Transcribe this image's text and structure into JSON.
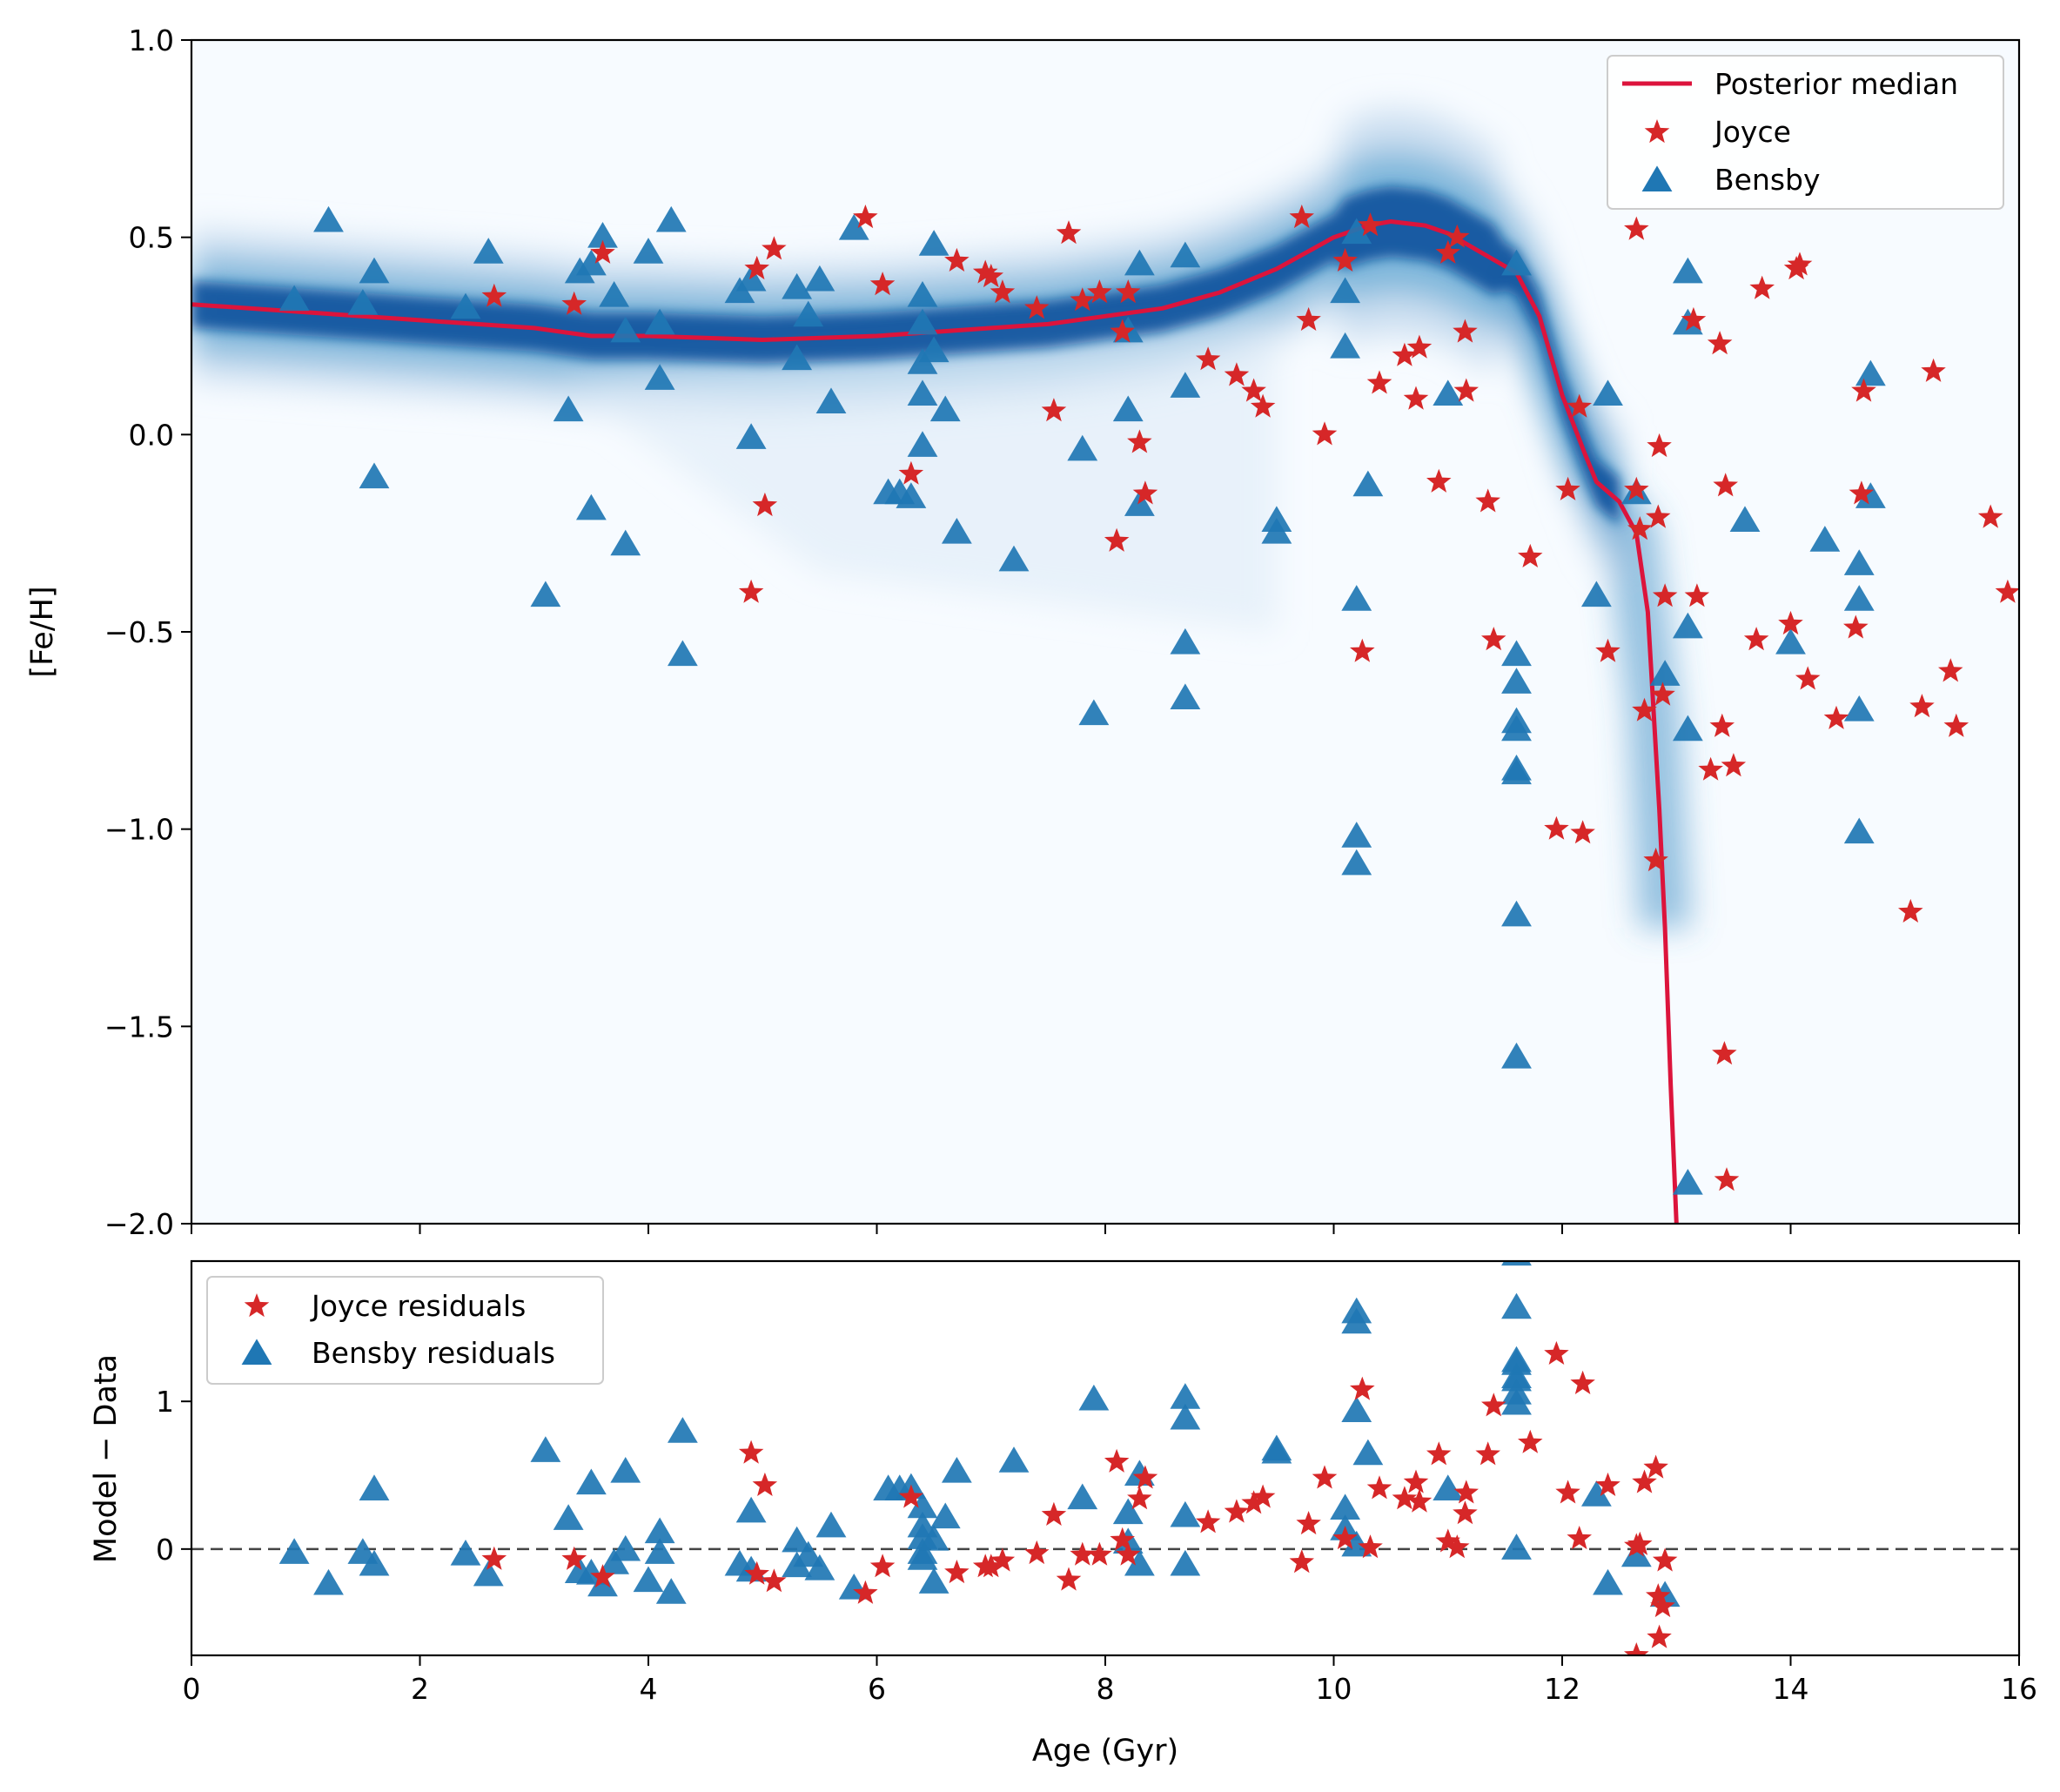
{
  "chart_data": [
    {
      "type": "scatter",
      "panel": "top",
      "xlabel": "Age (Gyr)",
      "ylabel": "[Fe/H]",
      "xlim": [
        0,
        16
      ],
      "ylim": [
        -2.0,
        1.0
      ],
      "xticks": [
        0,
        2,
        4,
        6,
        8,
        10,
        12,
        14,
        16
      ],
      "yticks": [
        1.0,
        0.5,
        0.0,
        -0.5,
        -1.0,
        -1.5,
        -2.0
      ],
      "ytick_labels": [
        "1.0",
        "0.5",
        "0.0",
        "−0.5",
        "−1.0",
        "−1.5",
        "−2.0"
      ],
      "xtick_labels_shown": false,
      "grid": false,
      "legend_position": "top-right",
      "legend": [
        "Posterior median",
        "Joyce",
        "Bensby"
      ],
      "background_density": "blue posterior density band",
      "posterior_median": {
        "name": "Posterior median",
        "color": "#dc143c",
        "x": [
          0,
          1,
          2,
          3,
          3.5,
          4,
          5,
          6,
          7,
          7.5,
          8,
          8.5,
          9,
          9.5,
          10,
          10.3,
          10.5,
          10.8,
          11,
          11.3,
          11.6,
          11.8,
          12.0,
          12.2,
          12.3,
          12.5,
          12.65,
          12.75,
          12.8,
          12.85,
          12.9,
          12.95,
          13.0
        ],
        "y": [
          0.33,
          0.31,
          0.29,
          0.27,
          0.25,
          0.25,
          0.24,
          0.25,
          0.27,
          0.28,
          0.3,
          0.32,
          0.36,
          0.42,
          0.5,
          0.53,
          0.54,
          0.53,
          0.51,
          0.46,
          0.41,
          0.3,
          0.1,
          -0.05,
          -0.12,
          -0.17,
          -0.25,
          -0.45,
          -0.7,
          -0.95,
          -1.25,
          -1.65,
          -2.0
        ]
      },
      "series": [
        {
          "name": "Joyce",
          "marker": "star",
          "color": "#d62728",
          "x": [
            2.65,
            3.35,
            3.6,
            4.9,
            4.95,
            5.02,
            5.1,
            5.9,
            6.05,
            6.3,
            6.7,
            6.95,
            7.0,
            7.1,
            7.4,
            7.55,
            7.68,
            7.8,
            7.95,
            8.1,
            8.15,
            8.2,
            8.3,
            8.35,
            8.9,
            9.15,
            9.3,
            9.38,
            9.72,
            9.78,
            9.92,
            10.1,
            10.25,
            10.32,
            10.4,
            10.62,
            10.72,
            10.75,
            10.92,
            11.0,
            11.08,
            11.15,
            11.16,
            11.35,
            11.4,
            11.72,
            11.95,
            12.05,
            12.15,
            12.18,
            12.4,
            12.65,
            12.65,
            12.68,
            12.72,
            12.82,
            12.84,
            12.85,
            12.88,
            12.9,
            13.15,
            13.18,
            13.3,
            13.38,
            13.4,
            13.42,
            13.43,
            13.44,
            13.5,
            13.7,
            13.75,
            14.0,
            14.05,
            14.08,
            14.15,
            14.4,
            14.57,
            14.62,
            14.64,
            15.05,
            15.15,
            15.25,
            15.4,
            15.45,
            15.75,
            15.9
          ],
          "y": [
            0.35,
            0.33,
            0.46,
            -0.4,
            0.42,
            -0.18,
            0.47,
            0.55,
            0.38,
            -0.1,
            0.44,
            0.41,
            0.4,
            0.36,
            0.32,
            0.06,
            0.51,
            0.34,
            0.36,
            -0.27,
            0.26,
            0.36,
            -0.02,
            -0.15,
            0.19,
            0.15,
            0.11,
            0.07,
            0.55,
            0.29,
            0.0,
            0.44,
            -0.55,
            0.53,
            0.13,
            0.2,
            0.09,
            0.22,
            -0.12,
            0.46,
            0.5,
            0.26,
            0.11,
            -0.17,
            -0.52,
            -0.31,
            -1.0,
            -0.14,
            0.07,
            -1.01,
            -0.55,
            0.52,
            -0.14,
            -0.24,
            -0.7,
            -1.08,
            -0.21,
            -0.03,
            -0.66,
            -0.41,
            0.29,
            -0.41,
            -0.85,
            0.23,
            -0.74,
            -1.57,
            -0.13,
            -1.89,
            -0.84,
            -0.52,
            0.37,
            -0.48,
            0.42,
            0.43,
            -0.62,
            -0.72,
            -0.49,
            -0.15,
            0.11,
            -1.21,
            -0.69,
            0.16,
            -0.6,
            -0.74,
            -0.21,
            -0.4
          ]
        },
        {
          "name": "Bensby",
          "marker": "triangle",
          "color": "#1f77b4",
          "x": [
            0.9,
            1.2,
            1.5,
            1.6,
            1.6,
            2.4,
            2.6,
            3.1,
            3.3,
            3.4,
            3.5,
            3.5,
            3.6,
            3.7,
            3.8,
            3.8,
            4.0,
            4.1,
            4.1,
            4.2,
            4.3,
            4.8,
            4.9,
            4.9,
            5.3,
            5.3,
            5.4,
            5.5,
            5.6,
            5.8,
            6.1,
            6.2,
            6.3,
            6.4,
            6.4,
            6.4,
            6.4,
            6.4,
            6.5,
            6.5,
            6.6,
            6.7,
            7.2,
            7.8,
            7.9,
            8.2,
            8.2,
            8.3,
            8.3,
            8.7,
            8.7,
            8.7,
            8.7,
            9.5,
            9.5,
            10.1,
            10.1,
            10.2,
            10.2,
            10.2,
            10.2,
            10.3,
            11.0,
            11.6,
            11.6,
            11.6,
            11.6,
            11.6,
            11.6,
            11.6,
            11.6,
            11.6,
            12.3,
            12.4,
            12.65,
            12.9,
            13.1,
            13.1,
            13.1,
            13.1,
            13.1,
            13.6,
            14.0,
            14.3,
            14.6,
            14.6,
            14.6,
            14.6,
            14.7,
            14.7
          ],
          "y": [
            0.34,
            0.54,
            0.33,
            0.41,
            -0.11,
            0.32,
            0.46,
            -0.41,
            0.06,
            0.41,
            0.43,
            -0.19,
            0.5,
            0.35,
            0.26,
            -0.28,
            0.46,
            0.28,
            0.14,
            0.54,
            -0.56,
            0.36,
            0.39,
            -0.01,
            0.37,
            0.19,
            0.3,
            0.39,
            0.08,
            0.52,
            -0.15,
            -0.15,
            -0.16,
            0.35,
            0.28,
            0.18,
            0.1,
            -0.03,
            0.48,
            0.21,
            0.06,
            -0.25,
            -0.32,
            -0.04,
            -0.71,
            0.26,
            0.06,
            0.43,
            -0.18,
            0.45,
            0.12,
            -0.53,
            -0.67,
            -0.22,
            -0.25,
            0.36,
            0.22,
            0.51,
            -0.42,
            -1.02,
            -1.09,
            -0.13,
            0.1,
            0.43,
            -0.56,
            -0.63,
            -0.73,
            -0.75,
            -0.85,
            -0.86,
            -1.22,
            -1.58,
            -0.41,
            0.1,
            -0.15,
            -0.61,
            0.41,
            0.28,
            -0.49,
            -0.75,
            -1.9,
            -0.22,
            -0.53,
            -0.27,
            -0.33,
            -0.42,
            -0.7,
            -1.01,
            -0.16,
            0.15
          ]
        }
      ]
    },
    {
      "type": "scatter",
      "panel": "bottom",
      "xlabel": "Age (Gyr)",
      "ylabel": "Model − Data",
      "xlim": [
        0,
        16
      ],
      "ylim": [
        -0.72,
        1.95
      ],
      "xticks": [
        0,
        2,
        4,
        6,
        8,
        10,
        12,
        14,
        16
      ],
      "xtick_labels": [
        "0",
        "2",
        "4",
        "6",
        "8",
        "10",
        "12",
        "14",
        "16"
      ],
      "yticks": [
        1,
        0
      ],
      "ytick_labels": [
        "1",
        "0"
      ],
      "grid": false,
      "reference_line": {
        "y": 0,
        "style": "dashed",
        "color": "#444444"
      },
      "legend_position": "top-left",
      "legend": [
        "Joyce residuals",
        "Bensby residuals"
      ],
      "series": [
        {
          "name": "Joyce residuals",
          "marker": "star",
          "color": "#d62728",
          "x": [
            2.65,
            3.35,
            3.6,
            4.9,
            4.95,
            5.02,
            5.1,
            5.9,
            6.05,
            6.3,
            6.7,
            6.95,
            7.0,
            7.1,
            7.4,
            7.55,
            7.68,
            7.8,
            7.95,
            8.1,
            8.15,
            8.2,
            8.3,
            8.35,
            8.9,
            9.15,
            9.3,
            9.38,
            9.72,
            9.78,
            9.92,
            10.1,
            10.25,
            10.32,
            10.4,
            10.62,
            10.72,
            10.75,
            10.92,
            11.0,
            11.08,
            11.15,
            11.16,
            11.35,
            11.4,
            11.72,
            11.95,
            12.05,
            12.15,
            12.18,
            12.4,
            12.65,
            12.65,
            12.68,
            12.72,
            12.82,
            12.84,
            12.85,
            12.88,
            12.9
          ],
          "y": [
            -0.07,
            -0.07,
            -0.19,
            0.65,
            -0.17,
            0.43,
            -0.22,
            -0.3,
            -0.12,
            0.35,
            -0.16,
            -0.12,
            -0.12,
            -0.08,
            -0.03,
            0.23,
            -0.21,
            -0.04,
            -0.04,
            0.59,
            0.06,
            -0.04,
            0.34,
            0.48,
            0.18,
            0.25,
            0.31,
            0.35,
            -0.09,
            0.17,
            0.48,
            0.07,
            1.08,
            0.01,
            0.41,
            0.34,
            0.45,
            0.32,
            0.64,
            0.05,
            0.01,
            0.24,
            0.38,
            0.64,
            0.97,
            0.72,
            1.32,
            0.38,
            0.07,
            1.12,
            0.43,
            -0.72,
            0.02,
            0.03,
            0.45,
            0.55,
            -0.32,
            -0.6,
            -0.39,
            -0.08
          ]
        },
        {
          "name": "Bensby residuals",
          "marker": "triangle",
          "color": "#1f77b4",
          "x": [
            0.9,
            1.2,
            1.5,
            1.6,
            1.6,
            2.4,
            2.6,
            3.1,
            3.3,
            3.4,
            3.5,
            3.5,
            3.6,
            3.7,
            3.8,
            3.8,
            4.0,
            4.1,
            4.1,
            4.2,
            4.3,
            4.8,
            4.9,
            4.9,
            5.3,
            5.3,
            5.4,
            5.5,
            5.6,
            5.8,
            6.1,
            6.2,
            6.3,
            6.4,
            6.4,
            6.4,
            6.4,
            6.4,
            6.5,
            6.5,
            6.6,
            6.7,
            7.2,
            7.8,
            7.9,
            8.2,
            8.2,
            8.3,
            8.3,
            8.7,
            8.7,
            8.7,
            8.7,
            9.5,
            9.5,
            10.1,
            10.1,
            10.2,
            10.2,
            10.2,
            10.2,
            10.3,
            11.0,
            11.6,
            11.6,
            11.6,
            11.6,
            11.6,
            11.6,
            11.6,
            11.6,
            11.6,
            12.3,
            12.4,
            12.65,
            12.9
          ],
          "y": [
            -0.03,
            -0.24,
            -0.03,
            -0.11,
            0.4,
            -0.04,
            -0.18,
            0.66,
            0.2,
            -0.16,
            -0.17,
            0.44,
            -0.25,
            -0.1,
            -0.01,
            0.52,
            -0.22,
            -0.03,
            0.11,
            -0.3,
            0.79,
            -0.11,
            -0.15,
            0.25,
            -0.12,
            0.05,
            -0.05,
            -0.14,
            0.15,
            -0.27,
            0.4,
            0.4,
            0.41,
            -0.07,
            -0.03,
            0.07,
            0.15,
            0.28,
            -0.23,
            0.06,
            0.21,
            0.52,
            0.59,
            0.34,
            1.01,
            0.04,
            0.24,
            -0.11,
            0.5,
            -0.11,
            0.22,
            0.88,
            1.02,
            0.65,
            0.67,
            0.13,
            0.27,
            0.02,
            0.93,
            1.53,
            1.6,
            0.64,
            0.4,
            0.0,
            0.98,
            1.05,
            1.14,
            1.16,
            1.25,
            1.27,
            1.63,
            1.99,
            0.36,
            -0.24,
            -0.05,
            -0.32
          ]
        }
      ]
    }
  ]
}
